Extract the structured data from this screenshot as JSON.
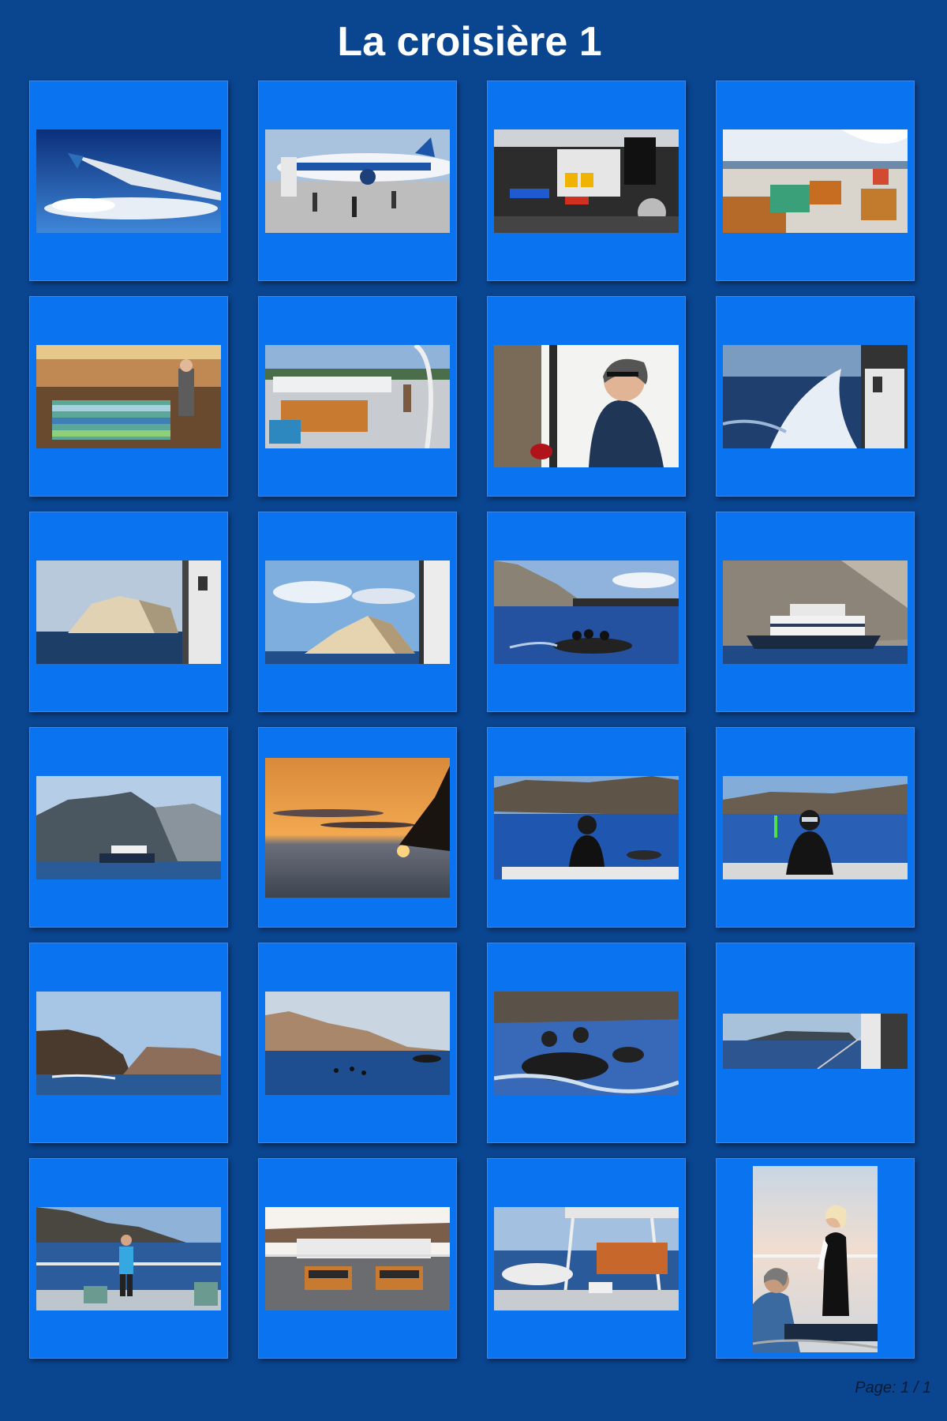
{
  "album": {
    "title": "La croisière 1"
  },
  "footer": {
    "page_label": "Page: 1 / 1"
  },
  "photos": [
    {
      "subject": "airplane-wing-icon"
    },
    {
      "subject": "airport-tarmac-icon"
    },
    {
      "subject": "dive-deck-icon"
    },
    {
      "subject": "lounge-deck-icon"
    },
    {
      "subject": "salon-interior-icon"
    },
    {
      "subject": "sun-deck-icon"
    },
    {
      "subject": "woman-at-table-icon"
    },
    {
      "subject": "ship-wake-icon"
    },
    {
      "subject": "cliff-coast-icon"
    },
    {
      "subject": "cliff-coast-icon"
    },
    {
      "subject": "dive-boat-icon"
    },
    {
      "subject": "cruise-ship-icon"
    },
    {
      "subject": "mountain-ship-icon"
    },
    {
      "subject": "sunset-icon"
    },
    {
      "subject": "diver-icon"
    },
    {
      "subject": "diver-icon"
    },
    {
      "subject": "headland-icon"
    },
    {
      "subject": "coast-swimmers-icon"
    },
    {
      "subject": "dinghy-divers-icon"
    },
    {
      "subject": "island-horizon-icon"
    },
    {
      "subject": "woman-on-deck-icon"
    },
    {
      "subject": "dining-deck-icon"
    },
    {
      "subject": "canopy-deck-icon"
    },
    {
      "subject": "two-women-icon"
    }
  ]
}
